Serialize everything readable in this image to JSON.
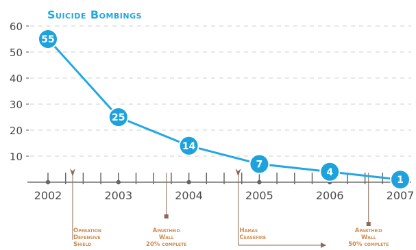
{
  "chart_data": {
    "type": "line",
    "title": "Suicide Bombings",
    "x": [
      2002,
      2003,
      2004,
      2005,
      2006,
      2007
    ],
    "values": [
      55,
      25,
      14,
      7,
      4,
      1
    ],
    "value_labels": [
      "55",
      "25",
      "14",
      "7",
      "4",
      "1"
    ],
    "xticks": [
      "2002",
      "2003",
      "2004",
      "2005",
      "2006",
      "2007"
    ],
    "yticks": [
      "10",
      "20",
      "30",
      "40",
      "50",
      "60"
    ],
    "ylim": [
      0,
      60
    ],
    "grid": "horizontal dashed",
    "colors": {
      "line": "#22a7e2",
      "marker_fill": "#1ea2de",
      "marker_text": "#ffffff",
      "axis": "#555555",
      "grid": "#cfcfcf",
      "annotation": "#d08a4e",
      "event_marker": "#8a6a5a"
    },
    "annotations": [
      {
        "lines": [
          "Operation",
          "Defensive",
          "Shield"
        ],
        "year": 2002.35,
        "kind": "event-down-arrow"
      },
      {
        "lines": [
          "Apartheid",
          "Wall",
          "20% complete"
        ],
        "year": 2003.68,
        "kind": "milestone-square"
      },
      {
        "lines": [
          "Hamas",
          "Ceasefire"
        ],
        "year": 2004.7,
        "kind": "event-down-arrow-range"
      },
      {
        "lines": [
          "Apartheid",
          "Wall",
          "50% complete"
        ],
        "year": 2006.55,
        "kind": "milestone-square"
      }
    ]
  }
}
